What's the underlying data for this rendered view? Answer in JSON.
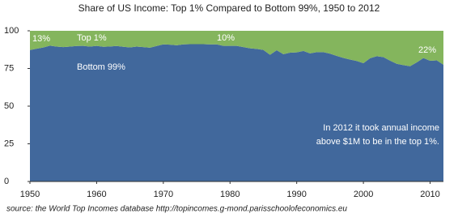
{
  "chart_data": {
    "type": "stacked-area",
    "title": "Share of US Income:  Top 1% Compared to Bottom 99%, 1950 to 2012",
    "source": "source:  the World Top Incomes database http://topincomes.g-mond.parisschoolofeconomics.eu",
    "x": [
      1950,
      1951,
      1952,
      1953,
      1954,
      1955,
      1956,
      1957,
      1958,
      1959,
      1960,
      1961,
      1962,
      1963,
      1964,
      1965,
      1966,
      1967,
      1968,
      1969,
      1970,
      1971,
      1972,
      1973,
      1974,
      1975,
      1976,
      1977,
      1978,
      1979,
      1980,
      1981,
      1982,
      1983,
      1984,
      1985,
      1986,
      1987,
      1988,
      1989,
      1990,
      1991,
      1992,
      1993,
      1994,
      1995,
      1996,
      1997,
      1998,
      1999,
      2000,
      2001,
      2002,
      2003,
      2004,
      2005,
      2006,
      2007,
      2008,
      2009,
      2010,
      2011,
      2012
    ],
    "series": [
      {
        "name": "Bottom 99%",
        "color": "#41689c",
        "values": [
          87.2,
          88.1,
          88.9,
          90.1,
          89.5,
          89.2,
          89.5,
          89.9,
          90.0,
          89.5,
          90.0,
          89.4,
          89.6,
          89.9,
          89.4,
          89.0,
          89.5,
          89.2,
          88.8,
          89.9,
          91.0,
          90.8,
          90.4,
          91.0,
          91.1,
          91.1,
          91.1,
          91.0,
          91.0,
          90.0,
          90.0,
          90.0,
          89.2,
          88.4,
          88.0,
          87.3,
          84.1,
          87.1,
          84.5,
          85.5,
          85.7,
          86.6,
          85.0,
          85.8,
          85.8,
          84.8,
          83.3,
          82.0,
          80.9,
          80.0,
          78.5,
          81.8,
          83.1,
          82.5,
          80.2,
          78.1,
          77.2,
          76.5,
          79.0,
          81.9,
          80.1,
          80.4,
          77.5
        ]
      },
      {
        "name": "Top 1%",
        "color": "#84b55d",
        "values": [
          12.8,
          11.9,
          11.1,
          9.9,
          10.5,
          10.8,
          10.5,
          10.1,
          10.0,
          10.5,
          10.0,
          10.6,
          10.4,
          10.1,
          10.6,
          11.0,
          10.5,
          10.8,
          11.2,
          10.1,
          9.0,
          9.2,
          9.6,
          9.0,
          8.9,
          8.9,
          8.9,
          9.0,
          9.0,
          10.0,
          10.0,
          10.0,
          10.8,
          11.6,
          12.0,
          12.7,
          15.9,
          12.9,
          15.5,
          14.5,
          14.3,
          13.4,
          15.0,
          14.2,
          14.2,
          15.2,
          16.7,
          18.0,
          19.1,
          20.0,
          21.5,
          18.2,
          16.9,
          17.5,
          19.8,
          21.9,
          22.8,
          23.5,
          21.0,
          18.1,
          19.9,
          19.6,
          22.5
        ]
      }
    ],
    "annotations": [
      "13%",
      "10%",
      "22%",
      "In 2012 it took annual income",
      "above $1M to be in the top 1%."
    ],
    "xlim": [
      1950,
      2012
    ],
    "xticks": [
      1950,
      1960,
      1970,
      1980,
      1990,
      2000,
      2010
    ],
    "ylim": [
      0,
      100
    ],
    "yticks": [
      0,
      25,
      50,
      75,
      100
    ]
  }
}
